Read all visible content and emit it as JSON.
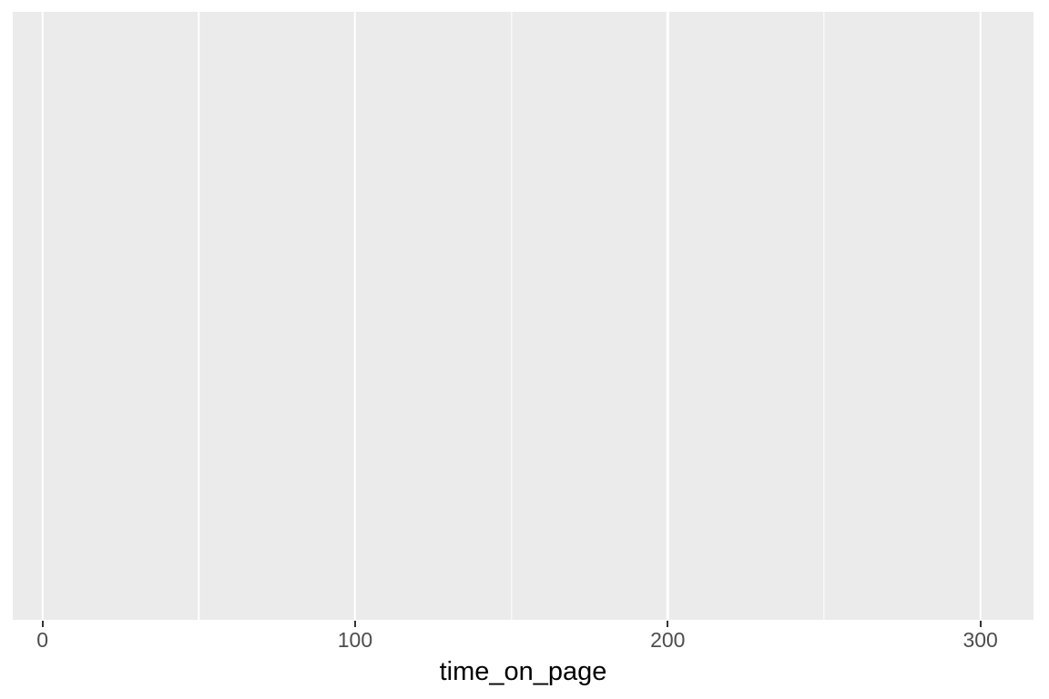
{
  "chart_data": {
    "type": "blank",
    "title": "",
    "xlabel": "time_on_page",
    "ylabel": "",
    "series": [],
    "x_major_ticks": [
      0,
      100,
      200,
      300
    ],
    "x_tick_labels": [
      "0",
      "100",
      "200",
      "300"
    ],
    "x_minor_ticks": [
      50,
      150,
      250
    ],
    "xlim": [
      -9.5,
      317
    ],
    "y_axis_visible": false,
    "grid": {
      "vertical_major": true,
      "vertical_minor": true,
      "horizontal": false
    },
    "legend_position": "none",
    "theme": "ggplot2-grey"
  },
  "style": {
    "page_bg": "#ffffff",
    "panel_bg": "#ebebeb",
    "grid_color": "#ffffff",
    "tick_color": "#333333",
    "tick_label_color": "#4d4d4d",
    "axis_title_color": "#000000"
  }
}
